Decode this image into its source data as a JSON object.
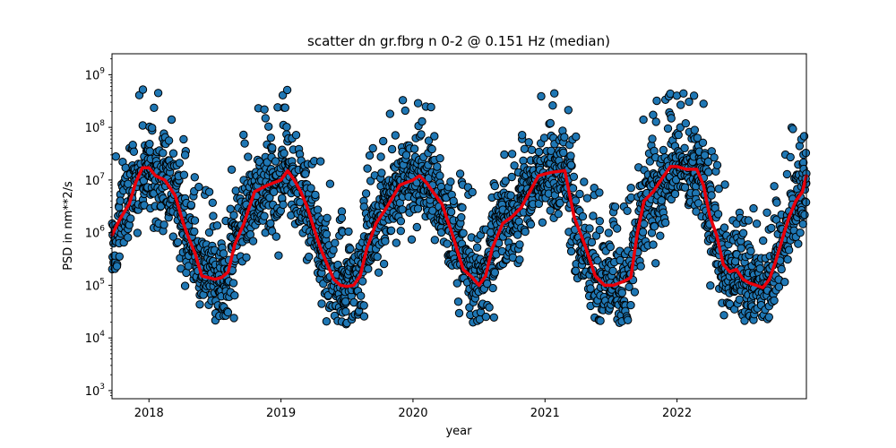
{
  "chart_data": {
    "type": "scatter",
    "title": "scatter dn gr.fbrg n 0-2 @ 0.151 Hz (median)",
    "xlabel": "year",
    "ylabel": "PSD in nm**2/s",
    "y_scale": "log",
    "xlim": [
      2017.72,
      2022.98
    ],
    "ylim": [
      700,
      2500000000
    ],
    "x_ticks": [
      {
        "value": 2018,
        "label": "2018"
      },
      {
        "value": 2019,
        "label": "2019"
      },
      {
        "value": 2020,
        "label": "2020"
      },
      {
        "value": 2021,
        "label": "2021"
      },
      {
        "value": 2022,
        "label": "2022"
      }
    ],
    "y_ticks": [
      {
        "value": 1000,
        "base": "10",
        "exp": "3"
      },
      {
        "value": 10000,
        "base": "10",
        "exp": "4"
      },
      {
        "value": 100000,
        "base": "10",
        "exp": "5"
      },
      {
        "value": 1000000,
        "base": "10",
        "exp": "6"
      },
      {
        "value": 10000000,
        "base": "10",
        "exp": "7"
      },
      {
        "value": 100000000,
        "base": "10",
        "exp": "8"
      },
      {
        "value": 1000000000,
        "base": "10",
        "exp": "9"
      }
    ],
    "grid": false,
    "colors": {
      "points": "#1f77b4",
      "point_edge": "#000000",
      "median_line": "#e8000b"
    },
    "series": [
      {
        "kind": "median-line",
        "x": [
          2017.72,
          2017.78,
          2017.85,
          2017.9,
          2017.95,
          2018.0,
          2018.05,
          2018.12,
          2018.2,
          2018.26,
          2018.3,
          2018.35,
          2018.4,
          2018.45,
          2018.5,
          2018.55,
          2018.6,
          2018.65,
          2018.72,
          2018.8,
          2018.9,
          2019.0,
          2019.05,
          2019.1,
          2019.15,
          2019.2,
          2019.25,
          2019.3,
          2019.35,
          2019.4,
          2019.45,
          2019.5,
          2019.55,
          2019.6,
          2019.65,
          2019.72,
          2019.8,
          2019.9,
          2020.0,
          2020.05,
          2020.1,
          2020.15,
          2020.22,
          2020.3,
          2020.38,
          2020.45,
          2020.5,
          2020.55,
          2020.6,
          2020.68,
          2020.75,
          2020.82,
          2020.9,
          2020.95,
          2021.0,
          2021.05,
          2021.15,
          2021.22,
          2021.3,
          2021.38,
          2021.45,
          2021.52,
          2021.6,
          2021.65,
          2021.7,
          2021.75,
          2021.82,
          2021.9,
          2021.95,
          2022.0,
          2022.07,
          2022.15,
          2022.2,
          2022.25,
          2022.3,
          2022.35,
          2022.4,
          2022.45,
          2022.5,
          2022.55,
          2022.6,
          2022.65,
          2022.7,
          2022.75,
          2022.8,
          2022.85,
          2022.9,
          2022.95,
          2022.98
        ],
        "y": [
          900000,
          1800000,
          3500000,
          9000000,
          17000000,
          17000000,
          12000000,
          10000000,
          5000000,
          1500000,
          800000,
          400000,
          150000,
          140000,
          130000,
          140000,
          180000,
          600000,
          1500000,
          6000000,
          8000000,
          10000000,
          15000000,
          10000000,
          6000000,
          3000000,
          1200000,
          500000,
          250000,
          130000,
          100000,
          95000,
          100000,
          150000,
          500000,
          1500000,
          3000000,
          8000000,
          10000000,
          12000000,
          9000000,
          6000000,
          3500000,
          900000,
          200000,
          140000,
          100000,
          150000,
          500000,
          1500000,
          2000000,
          3000000,
          7000000,
          12000000,
          13000000,
          14000000,
          15000000,
          2000000,
          600000,
          150000,
          100000,
          100000,
          120000,
          140000,
          1000000,
          4000000,
          6000000,
          12000000,
          18000000,
          18000000,
          16000000,
          16000000,
          8000000,
          2000000,
          900000,
          250000,
          180000,
          200000,
          130000,
          110000,
          100000,
          90000,
          130000,
          300000,
          800000,
          2000000,
          4000000,
          6000000,
          12000000
        ]
      }
    ]
  }
}
